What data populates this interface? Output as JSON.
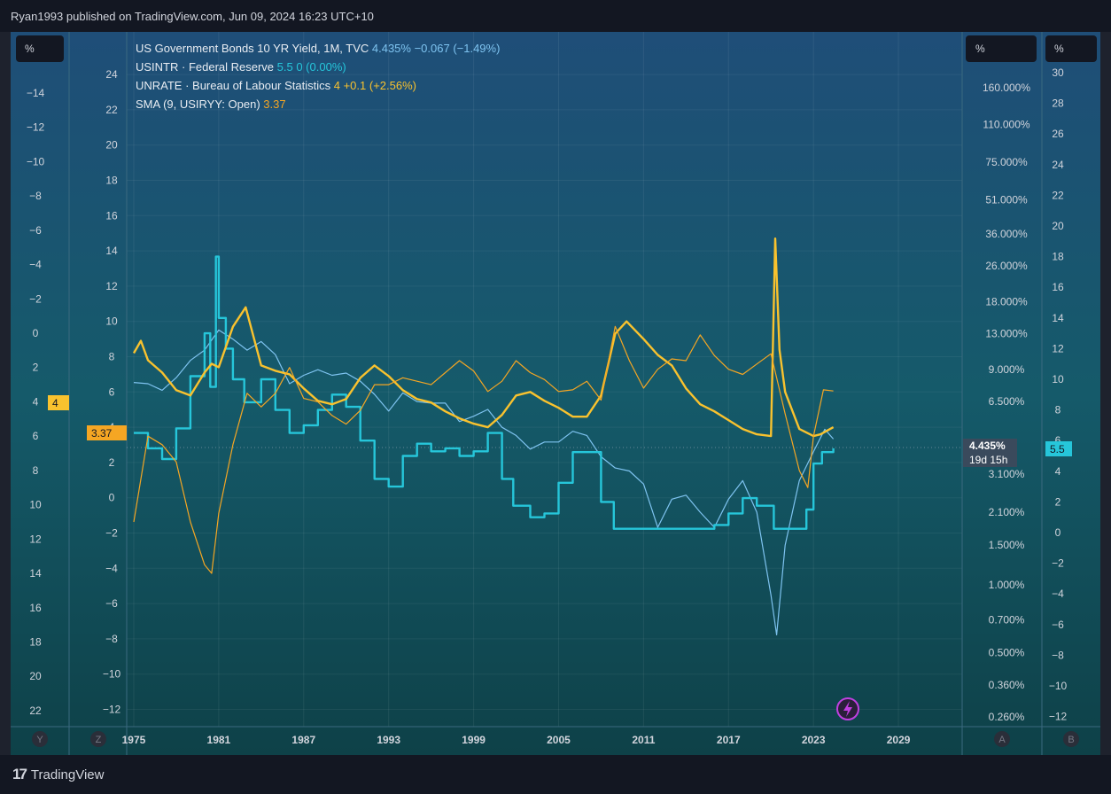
{
  "header": {
    "publish_line": "Ryan1993 published on TradingView.com, Jun 09, 2024 16:23 UTC+10"
  },
  "footer": {
    "brand": "TradingView",
    "logo_icon": "tradingview-logo-icon"
  },
  "axes_units": {
    "left": "%",
    "right_a": "%",
    "right_b": "%"
  },
  "axis_buttons": {
    "y": "Y",
    "z": "Z",
    "a": "A",
    "b": "B"
  },
  "legend": [
    {
      "name": "US Government Bonds 10 YR Yield, 1M, TVC",
      "value": "4.435%",
      "change": "−0.067 (−1.49%)",
      "color": "#7ec3f0"
    },
    {
      "name": "USINTR · Federal Reserve",
      "value": "5.5",
      "change": "0 (0.00%)",
      "color": "#26c6da"
    },
    {
      "name": "UNRATE · Bureau of Labour Statistics",
      "value": "4",
      "change": "+0.1 (+2.56%)",
      "color": "#f9c22e"
    },
    {
      "name": "SMA (9, USIRYY: Open)",
      "value": "3.37",
      "change": "",
      "color": "#f5a623"
    }
  ],
  "price_labels": {
    "unrate": "4",
    "sma": "3.37",
    "us10y": "4.435%",
    "countdown": "19d 15h",
    "usintr": "5.5"
  },
  "chart_data": {
    "type": "line",
    "x_label_years": [
      "1975",
      "1981",
      "1987",
      "1993",
      "1999",
      "2005",
      "2011",
      "2017",
      "2023",
      "2029"
    ],
    "xlim": [
      1974.5,
      2033.5
    ],
    "axes": {
      "scale_z": {
        "ticks": [
          "24",
          "22",
          "20",
          "18",
          "16",
          "14",
          "12",
          "10",
          "8",
          "6",
          "4",
          "2",
          "0",
          "−2",
          "−4",
          "−6",
          "−8",
          "−10",
          "−12"
        ]
      },
      "scale_y": {
        "ticks": [
          "−14",
          "−12",
          "−10",
          "−8",
          "−6",
          "−4",
          "−2",
          "0",
          "2",
          "4",
          "6",
          "8",
          "10",
          "12",
          "14",
          "16",
          "18",
          "20",
          "22"
        ]
      },
      "scale_a": {
        "log": true,
        "ticks": [
          "160.000%",
          "110.000%",
          "75.000%",
          "51.000%",
          "36.000%",
          "26.000%",
          "18.000%",
          "13.000%",
          "9.000%",
          "6.500%",
          "3.100%",
          "2.100%",
          "1.500%",
          "1.000%",
          "0.700%",
          "0.500%",
          "0.360%",
          "0.260%"
        ]
      },
      "scale_b": {
        "ticks": [
          "30",
          "28",
          "26",
          "24",
          "22",
          "20",
          "18",
          "16",
          "14",
          "12",
          "10",
          "8",
          "6",
          "4",
          "2",
          "0",
          "−2",
          "−4",
          "−6",
          "−8",
          "−10",
          "−12"
        ]
      }
    },
    "series": [
      {
        "name": "US Government Bonds 10 YR Yield, 1M, TVC",
        "color": "#7ec3f0",
        "scale": "a",
        "x": [
          1975,
          1976,
          1977,
          1978,
          1979,
          1980,
          1981,
          1982,
          1983,
          1984,
          1985,
          1986,
          1987,
          1988,
          1989,
          1990,
          1991,
          1992,
          1993,
          1994,
          1995,
          1996,
          1997,
          1998,
          1999,
          2000,
          2001,
          2002,
          2003,
          2004,
          2005,
          2006,
          2007,
          2008,
          2009,
          2010,
          2011,
          2012,
          2013,
          2014,
          2015,
          2016,
          2017,
          2018,
          2019,
          2020,
          2020.4,
          2021,
          2022,
          2023,
          2023.8,
          2024.4
        ],
        "y": [
          7.9,
          7.8,
          7.3,
          8.3,
          9.9,
          11.0,
          13.5,
          12.3,
          11.0,
          12.0,
          10.5,
          7.8,
          8.5,
          9.0,
          8.5,
          8.7,
          8.0,
          7.0,
          5.9,
          7.1,
          6.5,
          6.4,
          6.4,
          5.3,
          5.6,
          6.0,
          5.0,
          4.6,
          4.0,
          4.3,
          4.3,
          4.8,
          4.6,
          3.7,
          3.3,
          3.2,
          2.8,
          1.8,
          2.4,
          2.5,
          2.1,
          1.8,
          2.4,
          2.9,
          2.1,
          0.9,
          0.6,
          1.5,
          2.9,
          3.9,
          4.9,
          4.435
        ]
      },
      {
        "name": "USINTR · Federal Reserve",
        "color": "#26c6da",
        "scale": "b",
        "x": [
          1975,
          1976,
          1977,
          1978,
          1979,
          1980,
          1980.4,
          1980.8,
          1981,
          1981.5,
          1982,
          1982.8,
          1983,
          1984,
          1985,
          1986,
          1987,
          1988,
          1989,
          1990,
          1991,
          1992,
          1993,
          1994,
          1995,
          1996,
          1997,
          1998,
          1999,
          2000,
          2001,
          2001.8,
          2002,
          2003,
          2004,
          2005,
          2006,
          2007,
          2008,
          2008.9,
          2015,
          2016,
          2017,
          2018,
          2019,
          2019.9,
          2020.2,
          2022,
          2022.5,
          2023,
          2023.6,
          2024.4
        ],
        "y": [
          6.5,
          5.5,
          4.8,
          6.8,
          10.2,
          13.0,
          9.5,
          18.0,
          14.0,
          12.0,
          10.0,
          8.5,
          8.5,
          10.0,
          8.0,
          6.5,
          7.0,
          8.0,
          9.0,
          8.2,
          6.0,
          3.5,
          3.0,
          5.0,
          5.8,
          5.3,
          5.5,
          5.0,
          5.3,
          6.5,
          3.5,
          1.75,
          1.75,
          1.0,
          1.25,
          3.25,
          5.25,
          5.25,
          2.0,
          0.25,
          0.25,
          0.5,
          1.25,
          2.25,
          1.75,
          1.75,
          0.25,
          0.25,
          1.5,
          4.5,
          5.25,
          5.5
        ]
      },
      {
        "name": "UNRATE · Bureau of Labour Statistics",
        "color": "#f9c22e",
        "scale": "z",
        "x": [
          1975,
          1975.5,
          1976,
          1977,
          1978,
          1979,
          1980,
          1980.5,
          1981,
          1982,
          1982.9,
          1984,
          1985,
          1986,
          1987,
          1988,
          1989,
          1990,
          1991,
          1992,
          1993,
          1994,
          1995,
          1996,
          1997,
          1998,
          1999,
          2000,
          2001,
          2002,
          2003,
          2004,
          2005,
          2006,
          2007,
          2008,
          2009,
          2009.8,
          2011,
          2012,
          2013,
          2014,
          2015,
          2016,
          2017,
          2018,
          2019,
          2020,
          2020.3,
          2020.6,
          2021,
          2022,
          2023,
          2023.5,
          2024.4
        ],
        "y": [
          8.2,
          8.9,
          7.8,
          7.1,
          6.1,
          5.8,
          7.1,
          7.6,
          7.4,
          9.7,
          10.8,
          7.5,
          7.2,
          7.0,
          6.2,
          5.5,
          5.3,
          5.6,
          6.8,
          7.5,
          6.9,
          6.1,
          5.6,
          5.4,
          4.9,
          4.5,
          4.2,
          4.0,
          4.7,
          5.8,
          6.0,
          5.5,
          5.1,
          4.6,
          4.6,
          5.8,
          9.3,
          10.0,
          9.0,
          8.1,
          7.5,
          6.2,
          5.3,
          4.9,
          4.4,
          3.9,
          3.6,
          3.5,
          14.7,
          8.4,
          6.0,
          3.9,
          3.5,
          3.6,
          4.0
        ]
      },
      {
        "name": "SMA (9, USIRYY: Open)",
        "color": "#f5a623",
        "scale": "y",
        "x": [
          1975,
          1976,
          1977,
          1978,
          1979,
          1980,
          1980.5,
          1981,
          1982,
          1983,
          1984,
          1985,
          1986,
          1987,
          1988,
          1989,
          1990,
          1991,
          1992,
          1993,
          1994,
          1995,
          1996,
          1997,
          1998,
          1999,
          2000,
          2001,
          2002,
          2003,
          2004,
          2005,
          2006,
          2007,
          2008,
          2009,
          2010,
          2011,
          2012,
          2013,
          2014,
          2015,
          2016,
          2017,
          2018,
          2019,
          2020,
          2021,
          2022,
          2022.6,
          2023,
          2023.7,
          2024.4
        ],
        "y": [
          11.0,
          6.0,
          6.5,
          7.5,
          11.0,
          13.5,
          14.0,
          10.5,
          6.5,
          3.5,
          4.3,
          3.5,
          2.0,
          3.8,
          4.0,
          4.8,
          5.3,
          4.5,
          3.0,
          3.0,
          2.6,
          2.8,
          3.0,
          2.3,
          1.6,
          2.2,
          3.4,
          2.8,
          1.6,
          2.3,
          2.7,
          3.4,
          3.3,
          2.8,
          3.9,
          -0.4,
          1.6,
          3.2,
          2.1,
          1.5,
          1.6,
          0.1,
          1.3,
          2.1,
          2.4,
          1.8,
          1.2,
          4.7,
          8.0,
          9.0,
          6.0,
          3.3,
          3.37
        ]
      }
    ]
  }
}
